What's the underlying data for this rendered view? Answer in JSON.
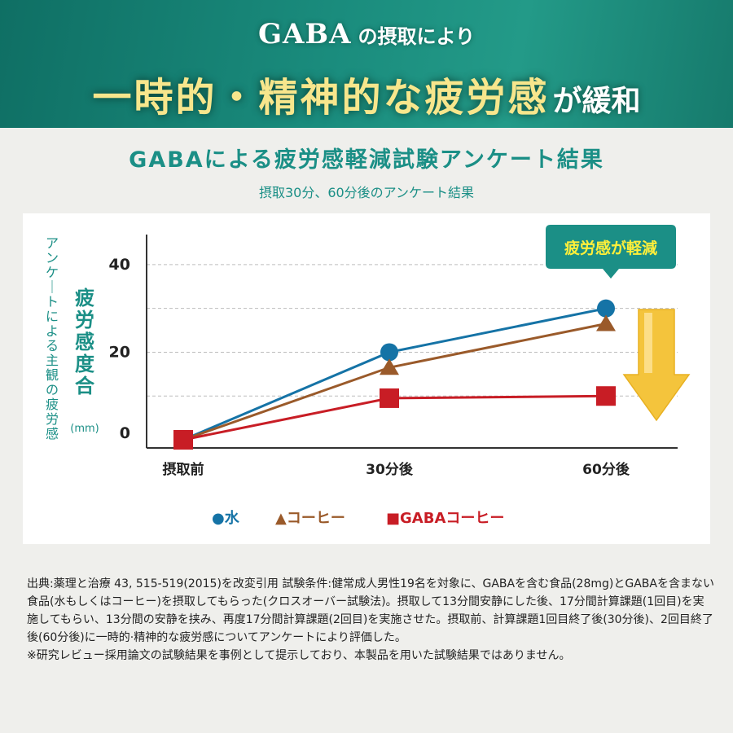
{
  "banner": {
    "gaba": "GABA",
    "intro": "の摂取により",
    "headline": "一時的・精神的な疲労感",
    "headline_tail": "が緩和"
  },
  "chart_data": {
    "type": "line",
    "title": "GABAによる疲労感軽減試験アンケート結果",
    "subtitle": "摂取30分、60分後のアンケート結果",
    "ylabel_outer": "アンケートによる主観の疲労感",
    "ylabel_main": "疲労感度合",
    "ylabel_unit": "(mm)",
    "categories": [
      "摂取前",
      "30分後",
      "60分後"
    ],
    "y_ticks": [
      0,
      20,
      40
    ],
    "ylim": [
      0,
      45
    ],
    "grid_values": [
      10,
      20,
      30,
      40
    ],
    "grid": "dashed-horizontal",
    "series": [
      {
        "name": "水",
        "legend_marker": "●",
        "marker": "circle",
        "color": "#1573a6",
        "values": [
          0,
          20,
          30
        ]
      },
      {
        "name": "コーヒー",
        "legend_marker": "▲",
        "marker": "triangle",
        "color": "#9a5a2a",
        "values": [
          0,
          16.5,
          26.5
        ]
      },
      {
        "name": "GABAコーヒー",
        "legend_marker": "■",
        "marker": "square",
        "color": "#c81d25",
        "values": [
          0,
          9.5,
          10
        ]
      }
    ],
    "annotation": {
      "text": "疲労感が軽減",
      "color": "#1b8f86",
      "text_color": "#ffef3a"
    },
    "arrow_color": "#f4c43c",
    "legend_placement": "bottom-center"
  },
  "footnote": {
    "body": "出典:薬理と治療 43, 515-519(2015)を改変引用 試験条件:健常成人男性19名を対象に、GABAを含む食品(28mg)とGABAを含まない食品(水もしくはコーヒー)を摂取してもらった(クロスオーバー試験法)。摂取して13分間安静にした後、17分間計算課題(1回目)を実施してもらい、13分間の安静を挟み、再度17分間計算課題(2回目)を実施させた。摂取前、計算課題1回目終了後(30分後)、2回目終了後(60分後)に一時的·精神的な疲労感についてアンケートにより評価した。",
    "note": "※研究レビュー採用論文の試験結果を事例として提示しており、本製品を用いた試験結果ではありません。"
  }
}
